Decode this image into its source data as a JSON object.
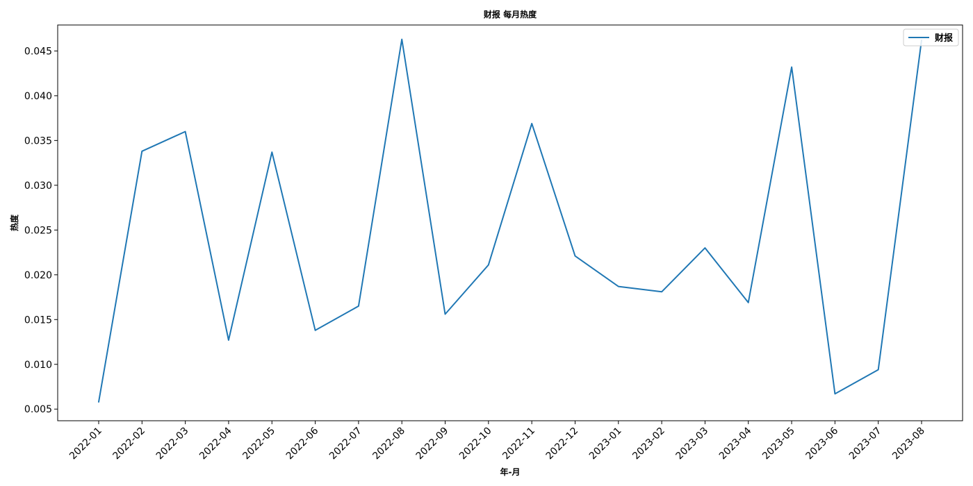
{
  "chart_data": {
    "type": "line",
    "title": "财报 每月热度",
    "xlabel": "年-月",
    "ylabel": "热度",
    "categories": [
      "2022-01",
      "2022-02",
      "2022-03",
      "2022-04",
      "2022-05",
      "2022-06",
      "2022-07",
      "2022-08",
      "2022-09",
      "2022-10",
      "2022-11",
      "2022-12",
      "2023-01",
      "2023-02",
      "2023-03",
      "2023-04",
      "2023-05",
      "2023-06",
      "2023-07",
      "2023-08"
    ],
    "series": [
      {
        "name": "财报",
        "color": "#1f77b4",
        "values": [
          0.0058,
          0.0338,
          0.036,
          0.0127,
          0.0337,
          0.0138,
          0.0165,
          0.0463,
          0.0156,
          0.0211,
          0.0369,
          0.0221,
          0.0187,
          0.0181,
          0.023,
          0.0169,
          0.0432,
          0.0067,
          0.0094,
          0.0462
        ]
      }
    ],
    "ylim": [
      0.0037,
      0.0479
    ],
    "yticks": [
      "0.005",
      "0.010",
      "0.015",
      "0.020",
      "0.025",
      "0.030",
      "0.035",
      "0.040",
      "0.045"
    ],
    "grid": false,
    "legend": "top-right"
  }
}
